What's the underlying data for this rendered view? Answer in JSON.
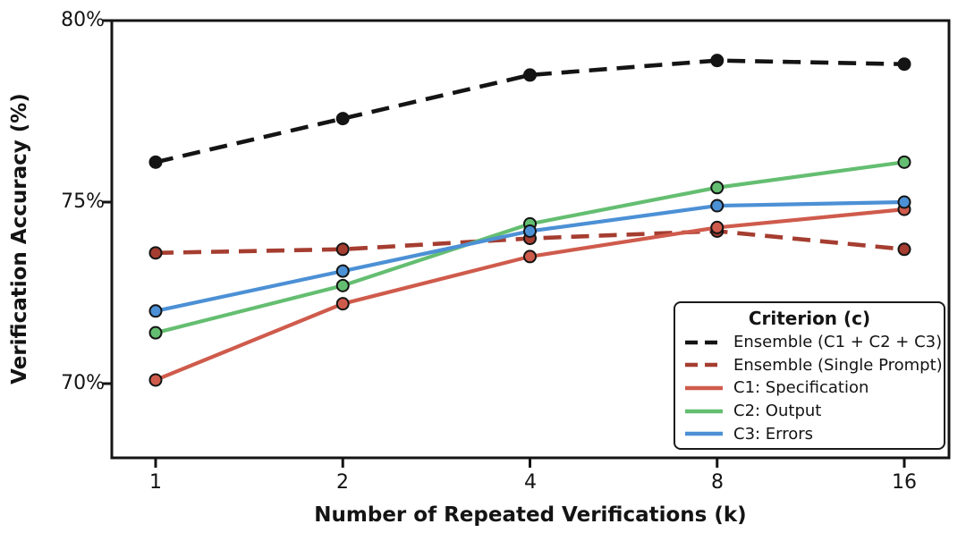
{
  "figure": {
    "x_axis_label": "Number of Repeated Verifications (k)",
    "y_axis_label": "Verification Accuracy (%)",
    "x_tick_labels": [
      "1",
      "2",
      "4",
      "8",
      "16"
    ],
    "y_tick_labels": [
      "80%",
      "75%",
      "70%"
    ]
  },
  "legend": {
    "title": "Criterion (c)",
    "position": "lower right"
  },
  "chart_data": {
    "type": "line",
    "title": "",
    "xlabel": "Number of Repeated Verifications (k)",
    "ylabel": "Verification Accuracy (%)",
    "x": [
      1,
      2,
      4,
      8,
      16
    ],
    "x_scale": "log2",
    "y_ticks": [
      80,
      75,
      70
    ],
    "y_tick_labels": [
      "80%",
      "75%",
      "70%"
    ],
    "ylim": [
      68,
      80
    ],
    "grid": false,
    "legend_title": "Criterion (c)",
    "legend_position": "lower right",
    "axis_color": "#141414",
    "series": [
      {
        "name": "Ensemble (C1 + C2 + C3)",
        "style": "dashed",
        "color": "#141414",
        "values": [
          76.1,
          77.3,
          78.5,
          78.9,
          78.8
        ]
      },
      {
        "name": "Ensemble (Single Prompt)",
        "style": "dashed",
        "color": "#A53D30",
        "values": [
          73.6,
          73.7,
          74.0,
          74.2,
          73.7
        ]
      },
      {
        "name": "C1: Specification",
        "style": "solid",
        "color": "#CF5B4C",
        "values": [
          70.1,
          72.2,
          73.5,
          74.3,
          74.8
        ]
      },
      {
        "name": "C2: Output",
        "style": "solid",
        "color": "#64BE71",
        "values": [
          71.4,
          72.7,
          74.4,
          75.4,
          76.1
        ]
      },
      {
        "name": "C3: Errors",
        "style": "solid",
        "color": "#4C90D5",
        "values": [
          72.0,
          73.1,
          74.2,
          74.9,
          75.0
        ]
      }
    ]
  }
}
